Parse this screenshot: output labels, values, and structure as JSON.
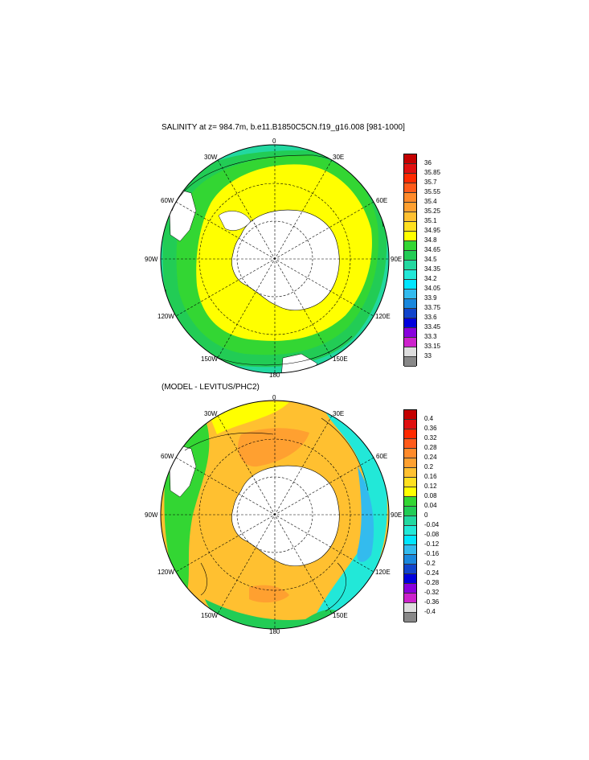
{
  "top_panel": {
    "title": "SALINITY at z= 984.7m, b.e11.B1850C5CN.f19_g16.008 [981-1000]",
    "lon_labels": [
      "0",
      "30E",
      "60E",
      "90E",
      "120E",
      "150E",
      "180",
      "150W",
      "120W",
      "90W",
      "60W",
      "30W"
    ],
    "colorbar": {
      "labels": [
        "36",
        "35.85",
        "35.7",
        "35.55",
        "35.4",
        "35.25",
        "35.1",
        "34.95",
        "34.8",
        "34.65",
        "34.5",
        "34.35",
        "34.2",
        "34.05",
        "33.9",
        "33.75",
        "33.6",
        "33.45",
        "33.3",
        "33.15",
        "33"
      ],
      "colors": [
        "#c40000",
        "#e01010",
        "#ff2a00",
        "#ff5a1a",
        "#ff8a2a",
        "#ffa030",
        "#ffc030",
        "#ffe020",
        "#ffff00",
        "#33d633",
        "#22cc55",
        "#22d8a0",
        "#22e8d8",
        "#00e6ff",
        "#33bbee",
        "#1a88dd",
        "#1144cc",
        "#0000dd",
        "#8800dd",
        "#cc22cc",
        "#dddddd",
        "#888888"
      ]
    }
  },
  "bottom_panel": {
    "title": "(MODEL - LEVITUS/PHC2)",
    "lon_labels": [
      "0",
      "30E",
      "60E",
      "90E",
      "120E",
      "150E",
      "180",
      "150W",
      "120W",
      "90W",
      "60W",
      "30W"
    ],
    "colorbar": {
      "labels": [
        "0.4",
        "0.36",
        "0.32",
        "0.28",
        "0.24",
        "0.2",
        "0.16",
        "0.12",
        "0.08",
        "0.04",
        "0",
        "-0.04",
        "-0.08",
        "-0.12",
        "-0.16",
        "-0.2",
        "-0.24",
        "-0.28",
        "-0.32",
        "-0.36",
        "-0.4"
      ],
      "colors": [
        "#c40000",
        "#e01010",
        "#ff2a00",
        "#ff5a1a",
        "#ff8a2a",
        "#ffa030",
        "#ffc030",
        "#ffe020",
        "#ffff00",
        "#33d633",
        "#22cc55",
        "#22d8a0",
        "#22e8d8",
        "#00e6ff",
        "#33bbee",
        "#1a88dd",
        "#1144cc",
        "#0000dd",
        "#8800dd",
        "#cc22cc",
        "#dddddd",
        "#888888"
      ]
    }
  }
}
